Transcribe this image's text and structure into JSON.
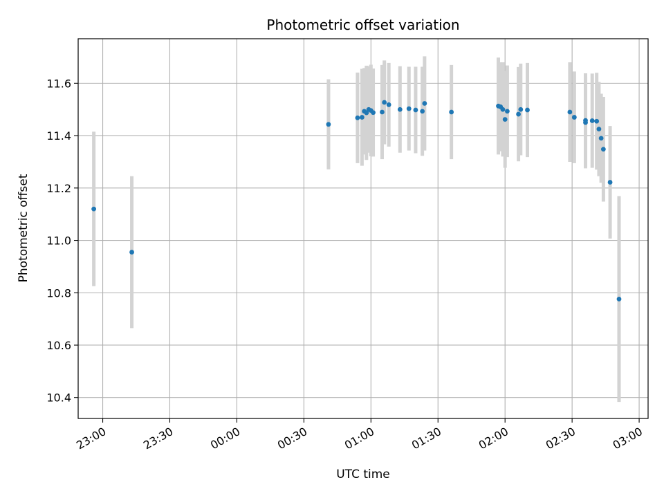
{
  "chart_data": {
    "type": "scatter",
    "title": "Photometric offset variation",
    "xlabel": "UTC time",
    "ylabel": "Photometric offset",
    "grid": true,
    "legend": "none",
    "x_range": [
      "22:49",
      "03:04"
    ],
    "ylim": [
      10.32,
      11.77
    ],
    "x_ticks": [
      "23:00",
      "23:30",
      "00:00",
      "00:30",
      "01:00",
      "01:30",
      "02:00",
      "02:30",
      "03:00"
    ],
    "y_ticks": [
      10.4,
      10.6,
      10.8,
      11.0,
      11.2,
      11.4,
      11.6
    ],
    "colors": {
      "point": "#1f77b4",
      "errorbar": "#d3d3d3",
      "grid": "#b0b0b0"
    },
    "points": [
      {
        "x": "22:56",
        "y": 11.12,
        "err": 0.295
      },
      {
        "x": "23:13",
        "y": 10.955,
        "err": 0.29
      },
      {
        "x": "00:41",
        "y": 11.443,
        "err": 0.172
      },
      {
        "x": "00:54",
        "y": 11.468,
        "err": 0.173
      },
      {
        "x": "00:56",
        "y": 11.47,
        "err": 0.185
      },
      {
        "x": "00:57",
        "y": 11.493,
        "err": 0.165
      },
      {
        "x": "00:58",
        "y": 11.487,
        "err": 0.18
      },
      {
        "x": "00:59",
        "y": 11.5,
        "err": 0.165
      },
      {
        "x": "01:00",
        "y": 11.496,
        "err": 0.175
      },
      {
        "x": "01:01",
        "y": 11.488,
        "err": 0.168
      },
      {
        "x": "01:05",
        "y": 11.49,
        "err": 0.18
      },
      {
        "x": "01:06",
        "y": 11.527,
        "err": 0.16
      },
      {
        "x": "01:08",
        "y": 11.518,
        "err": 0.16
      },
      {
        "x": "01:13",
        "y": 11.5,
        "err": 0.165
      },
      {
        "x": "01:17",
        "y": 11.503,
        "err": 0.16
      },
      {
        "x": "01:20",
        "y": 11.498,
        "err": 0.165
      },
      {
        "x": "01:23",
        "y": 11.493,
        "err": 0.17
      },
      {
        "x": "01:24",
        "y": 11.523,
        "err": 0.18
      },
      {
        "x": "01:36",
        "y": 11.49,
        "err": 0.18
      },
      {
        "x": "01:57",
        "y": 11.513,
        "err": 0.185
      },
      {
        "x": "01:58",
        "y": 11.51,
        "err": 0.17
      },
      {
        "x": "01:59",
        "y": 11.5,
        "err": 0.18
      },
      {
        "x": "02:00",
        "y": 11.462,
        "err": 0.185
      },
      {
        "x": "02:01",
        "y": 11.493,
        "err": 0.175
      },
      {
        "x": "02:06",
        "y": 11.482,
        "err": 0.18
      },
      {
        "x": "02:07",
        "y": 11.5,
        "err": 0.175
      },
      {
        "x": "02:10",
        "y": 11.498,
        "err": 0.18
      },
      {
        "x": "02:29",
        "y": 11.49,
        "err": 0.19
      },
      {
        "x": "02:31",
        "y": 11.47,
        "err": 0.175
      },
      {
        "x": "02:36",
        "y": 11.45,
        "err": 0.175
      },
      {
        "x": "02:36",
        "y": 11.458,
        "err": 0.18
      },
      {
        "x": "02:39",
        "y": 11.457,
        "err": 0.18
      },
      {
        "x": "02:41",
        "y": 11.455,
        "err": 0.185
      },
      {
        "x": "02:42",
        "y": 11.425,
        "err": 0.18
      },
      {
        "x": "02:43",
        "y": 11.39,
        "err": 0.17
      },
      {
        "x": "02:44",
        "y": 11.348,
        "err": 0.2
      },
      {
        "x": "02:47",
        "y": 11.222,
        "err": 0.215
      },
      {
        "x": "02:51",
        "y": 10.776,
        "err": 0.393
      }
    ]
  }
}
